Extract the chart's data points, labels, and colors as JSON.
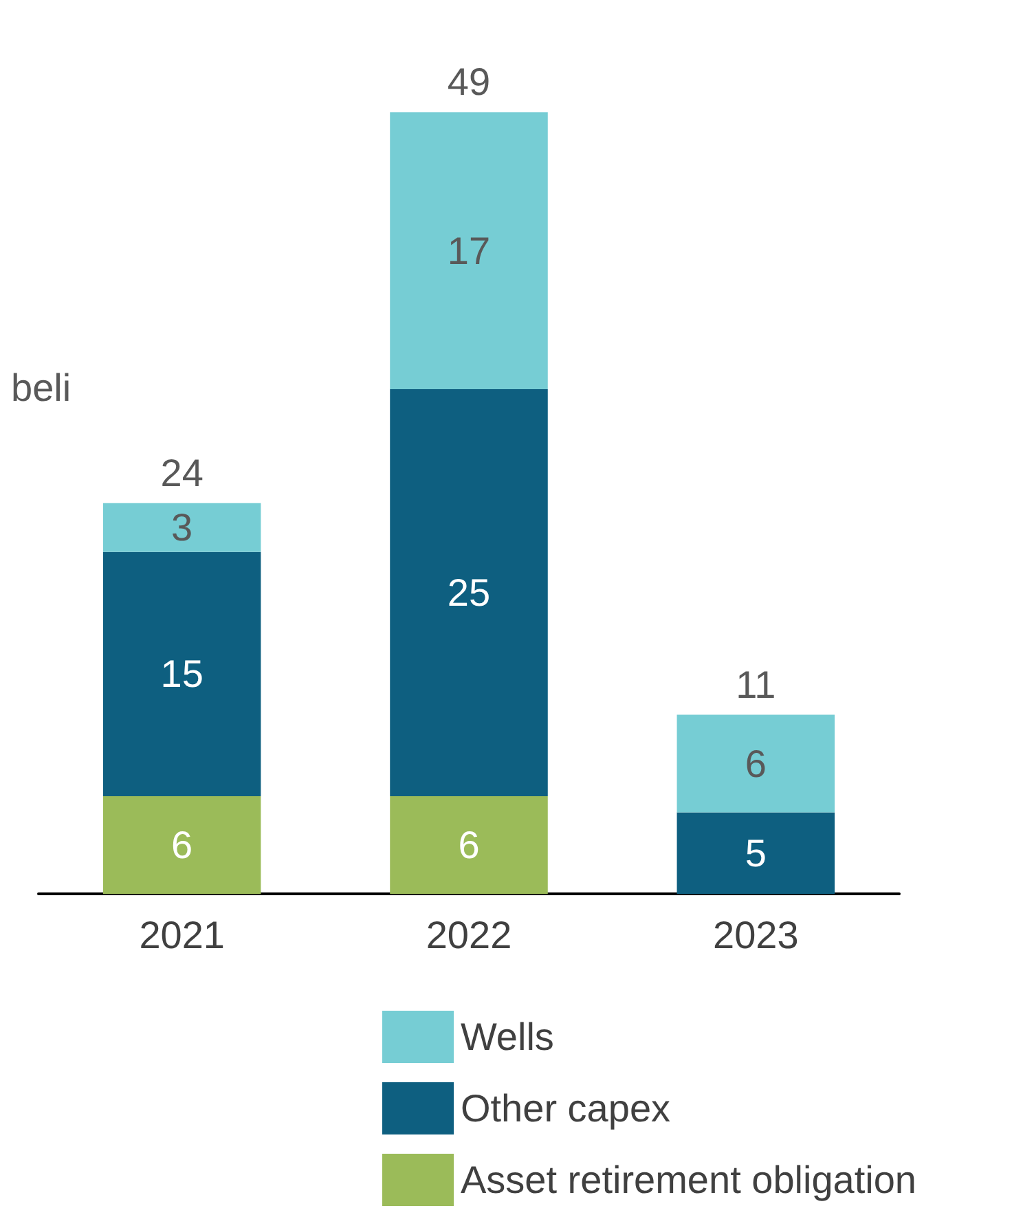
{
  "chart_data": {
    "type": "bar",
    "stacked": true,
    "categories": [
      "2021",
      "2022",
      "2023"
    ],
    "series": [
      {
        "name": "Asset retirement obligation",
        "color": "#9bbb59",
        "values": [
          6,
          6,
          null
        ]
      },
      {
        "name": "Other capex",
        "color": "#0e5f80",
        "values": [
          15,
          25,
          5
        ]
      },
      {
        "name": "Wells",
        "color": "#76cdd4",
        "values": [
          3,
          17,
          6
        ]
      }
    ],
    "data_labels": true,
    "totals": [
      "24",
      "49",
      "11"
    ],
    "legend": "bottom",
    "annotations": [
      "beli"
    ]
  }
}
